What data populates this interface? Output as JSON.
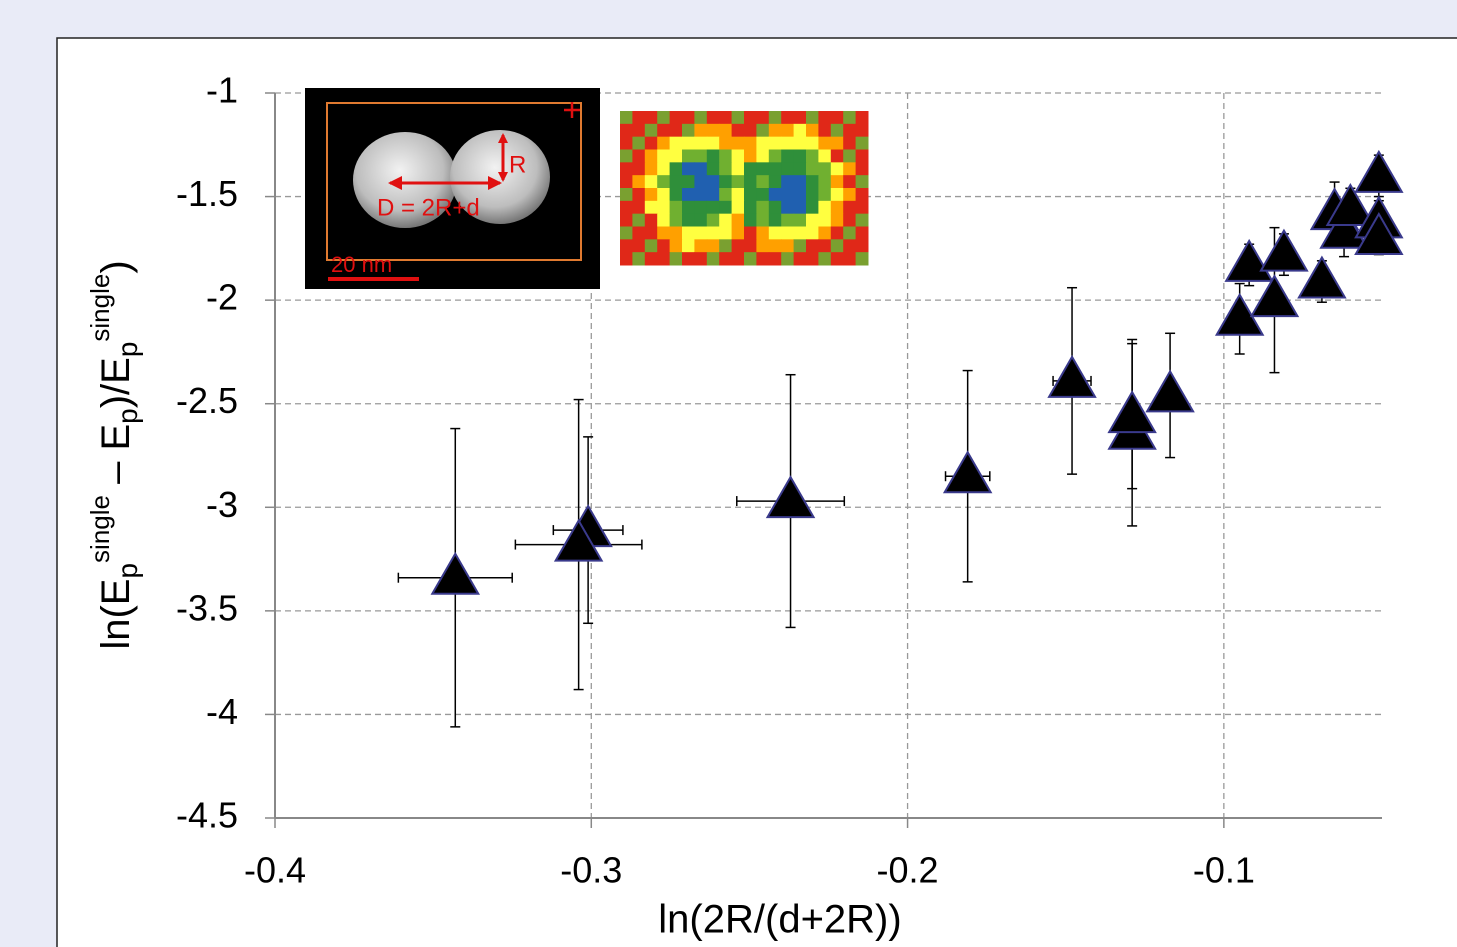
{
  "chart_data": {
    "type": "scatter",
    "x_label": "ln(2R/(d+2R))",
    "y_label_parts": [
      {
        "text": "ln(E"
      },
      {
        "text": "p",
        "sub": true
      },
      {
        "text": "single",
        "sup": true
      },
      {
        "text": " – E"
      },
      {
        "text": "p",
        "sub": true
      },
      {
        "text": ")/E"
      },
      {
        "text": "p",
        "sub": true
      },
      {
        "text": "single",
        "sup": true
      },
      {
        "text": ")"
      }
    ],
    "annotations": [
      "R",
      "D = 2R+d",
      "20 nm"
    ],
    "xlim": [
      -0.4,
      -0.05
    ],
    "xticks": [
      -0.4,
      -0.3,
      -0.2,
      -0.1
    ],
    "ylim": [
      -4.5,
      -1
    ],
    "yticks": [
      -1,
      -1.5,
      -2,
      -2.5,
      -3,
      -3.5,
      -4,
      -4.5
    ],
    "grid": true,
    "marker": "triangle",
    "series": [
      {
        "color": "#000000",
        "edge_color": "#3a3a8c",
        "x": [
          -0.343,
          -0.301,
          -0.304,
          -0.237,
          -0.181,
          -0.148,
          -0.129,
          -0.129,
          -0.117,
          -0.095,
          -0.092,
          -0.084,
          -0.081,
          -0.069,
          -0.065,
          -0.062,
          -0.06,
          -0.051,
          -0.051,
          -0.051
        ],
        "values": [
          -3.34,
          -3.11,
          -3.18,
          -2.97,
          -2.85,
          -2.39,
          -2.64,
          -2.56,
          -2.46,
          -2.09,
          -1.83,
          -2.0,
          -1.78,
          -1.91,
          -1.58,
          -1.67,
          -1.56,
          -1.4,
          -1.62,
          -1.7
        ],
        "xerr": [
          0.018,
          0.011,
          0.02,
          0.017,
          0.007,
          0.006,
          0,
          0,
          0,
          0,
          0,
          0,
          0,
          0,
          0,
          0,
          0,
          0,
          0,
          0
        ],
        "yerr": [
          0.72,
          0.45,
          0.7,
          0.61,
          0.51,
          0.45,
          0.45,
          0.35,
          0.3,
          0.17,
          0.1,
          0.35,
          0.1,
          0.1,
          0.15,
          0.12,
          0.1,
          0.1,
          0.1,
          0.08
        ]
      }
    ]
  }
}
